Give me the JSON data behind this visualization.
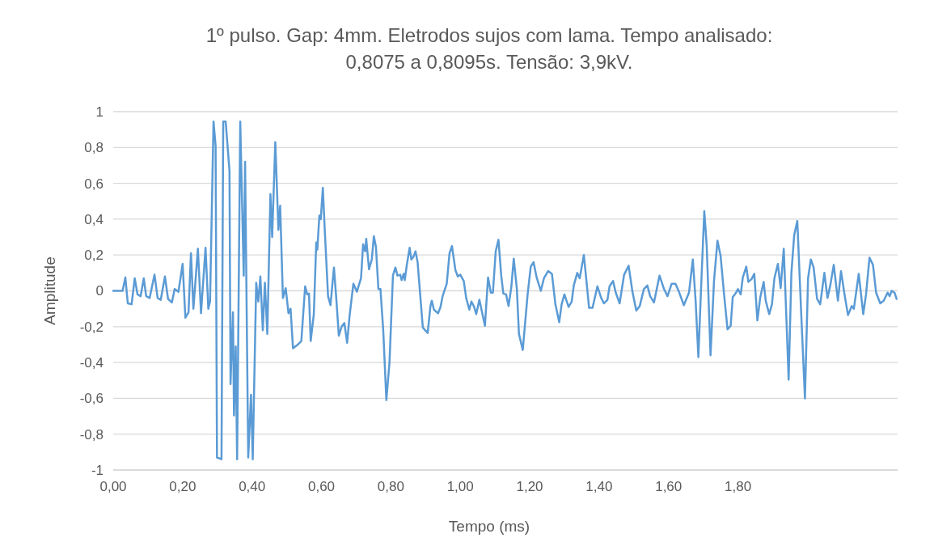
{
  "chart_data": {
    "type": "line",
    "title": "1º pulso. Gap: 4mm. Eletrodos sujos com lama. Tempo analisado: 0,8075 a 0,8095s. Tensão: 3,9kV.",
    "xlabel": "Tempo (ms)",
    "ylabel": "Amplitude",
    "xlim": [
      0,
      2.26
    ],
    "xticks": [
      {
        "value": 0,
        "label": "0,00"
      },
      {
        "value": 0.2,
        "label": "0,20"
      },
      {
        "value": 0.4,
        "label": "0,40"
      },
      {
        "value": 0.6,
        "label": "0,60"
      },
      {
        "value": 0.8,
        "label": "0,80"
      },
      {
        "value": 1.0,
        "label": "1,00"
      },
      {
        "value": 1.2,
        "label": "1,20"
      },
      {
        "value": 1.4,
        "label": "1,40"
      },
      {
        "value": 1.6,
        "label": "1,60"
      },
      {
        "value": 1.8,
        "label": "1,80"
      }
    ],
    "ylim": [
      -1,
      1
    ],
    "yticks": [
      -1,
      {
        "value": -0.8,
        "label": "-0,8"
      },
      {
        "value": -0.6,
        "label": "-0,6"
      },
      {
        "value": -0.4,
        "label": "-0,4"
      },
      {
        "value": -0.2,
        "label": "-0,2"
      },
      0,
      {
        "value": 0.2,
        "label": "0,2"
      },
      {
        "value": 0.4,
        "label": "0,4"
      },
      {
        "value": 0.6,
        "label": "0,6"
      },
      {
        "value": 0.8,
        "label": "0,8"
      },
      1
    ],
    "grid": "y",
    "marker": "none",
    "line_style": "solid",
    "series": [
      {
        "color": "#5b9bd5",
        "x": [
          0,
          0.004,
          0.027,
          0.035,
          0.042,
          0.053,
          0.062,
          0.07,
          0.079,
          0.088,
          0.095,
          0.105,
          0.119,
          0.128,
          0.137,
          0.149,
          0.158,
          0.169,
          0.177,
          0.188,
          0.2,
          0.208,
          0.217,
          0.224,
          0.231,
          0.244,
          0.253,
          0.266,
          0.274,
          0.279,
          0.289,
          0.295,
          0.299,
          0.312,
          0.317,
          0.324,
          0.335,
          0.338,
          0.345,
          0.348,
          0.353,
          0.357,
          0.366,
          0.376,
          0.38,
          0.389,
          0.397,
          0.402,
          0.412,
          0.418,
          0.424,
          0.431,
          0.437,
          0.444,
          0.453,
          0.458,
          0.467,
          0.476,
          0.481,
          0.489,
          0.497,
          0.505,
          0.511,
          0.518,
          0.532,
          0.542,
          0.553,
          0.559,
          0.564,
          0.569,
          0.578,
          0.585,
          0.588,
          0.594,
          0.598,
          0.604,
          0.609,
          0.619,
          0.626,
          0.636,
          0.643,
          0.65,
          0.658,
          0.666,
          0.674,
          0.681,
          0.692,
          0.702,
          0.714,
          0.72,
          0.726,
          0.729,
          0.737,
          0.745,
          0.751,
          0.757,
          0.764,
          0.77,
          0.778,
          0.787,
          0.796,
          0.806,
          0.813,
          0.819,
          0.827,
          0.831,
          0.837,
          0.84,
          0.846,
          0.854,
          0.859,
          0.865,
          0.871,
          0.877,
          0.892,
          0.906,
          0.914,
          0.918,
          0.924,
          0.936,
          0.943,
          0.949,
          0.961,
          0.969,
          0.976,
          0.986,
          0.993,
          1.0,
          1.01,
          1.017,
          1.026,
          1.032,
          1.04,
          1.046,
          1.055,
          1.071,
          1.08,
          1.088,
          1.094,
          1.102,
          1.11,
          1.118,
          1.124,
          1.132,
          1.139,
          1.147,
          1.154,
          1.163,
          1.169,
          1.18,
          1.194,
          1.203,
          1.211,
          1.22,
          1.232,
          1.241,
          1.253,
          1.264,
          1.274,
          1.285,
          1.292,
          1.3,
          1.312,
          1.321,
          1.327,
          1.337,
          1.344,
          1.356,
          1.362,
          1.371,
          1.381,
          1.395,
          1.406,
          1.414,
          1.424,
          1.43,
          1.44,
          1.448,
          1.459,
          1.472,
          1.485,
          1.496,
          1.507,
          1.517,
          1.529,
          1.539,
          1.547,
          1.558,
          1.574,
          1.587,
          1.597,
          1.609,
          1.62,
          1.63,
          1.644,
          1.659,
          1.67,
          1.678,
          1.686,
          1.693,
          1.703,
          1.71,
          1.721,
          1.731,
          1.741,
          1.75,
          1.76,
          1.77,
          1.779,
          1.785,
          1.793,
          1.8,
          1.808,
          1.814,
          1.824,
          1.83,
          1.839,
          1.847,
          1.856,
          1.864,
          1.874,
          1.88,
          1.89,
          1.898,
          1.905,
          1.915,
          1.923,
          1.932,
          1.94,
          1.946,
          1.954,
          1.962,
          1.971,
          1.983,
          1.993,
          2.002,
          2.01,
          2.018,
          2.028,
          2.037,
          2.049,
          2.058,
          2.066,
          2.076,
          2.088,
          2.097,
          2.107,
          2.117,
          2.128,
          2.134,
          2.148,
          2.161,
          2.169,
          2.179,
          2.189,
          2.198,
          2.21,
          2.22,
          2.231,
          2.237,
          2.243,
          2.251,
          2.257
        ],
        "values": [
          0,
          0,
          0,
          0.075,
          -0.07,
          -0.075,
          0.07,
          -0.02,
          -0.03,
          0.07,
          -0.03,
          -0.04,
          0.09,
          -0.04,
          -0.05,
          0.08,
          -0.045,
          -0.065,
          0.01,
          -0.005,
          0.15,
          -0.15,
          -0.12,
          0.21,
          -0.1,
          0.235,
          -0.125,
          0.24,
          -0.1,
          -0.06,
          0.945,
          0.81,
          -0.93,
          -0.94,
          0.945,
          0.945,
          0.67,
          -0.52,
          -0.12,
          -0.695,
          -0.31,
          -0.94,
          0.945,
          0.085,
          0.72,
          -0.93,
          -0.58,
          -0.94,
          0.045,
          -0.06,
          0.08,
          -0.22,
          0.045,
          -0.24,
          0.54,
          0.3,
          0.83,
          0.34,
          0.475,
          -0.04,
          0.015,
          -0.125,
          -0.1,
          -0.32,
          -0.3,
          -0.28,
          0.025,
          -0.02,
          -0.015,
          -0.28,
          -0.13,
          0.27,
          0.23,
          0.42,
          0.4,
          0.575,
          0.36,
          -0.03,
          -0.08,
          0.13,
          -0.05,
          -0.25,
          -0.2,
          -0.18,
          -0.29,
          -0.14,
          0.04,
          -0.005,
          0.07,
          0.26,
          0.22,
          0.29,
          0.12,
          0.175,
          0.305,
          0.245,
          0.01,
          0.01,
          -0.22,
          -0.61,
          -0.4,
          0.085,
          0.13,
          0.085,
          0.09,
          0.06,
          0.095,
          0.06,
          0.145,
          0.24,
          0.175,
          0.19,
          0.22,
          0.16,
          -0.205,
          -0.235,
          -0.085,
          -0.055,
          -0.105,
          -0.125,
          -0.09,
          -0.03,
          0.04,
          0.21,
          0.25,
          0.115,
          0.08,
          0.09,
          0.055,
          -0.04,
          -0.105,
          -0.06,
          -0.09,
          -0.13,
          -0.05,
          -0.195,
          0.075,
          -0.01,
          -0.01,
          0.22,
          0.285,
          0.085,
          -0.015,
          -0.02,
          -0.085,
          0.02,
          0.18,
          0.01,
          -0.24,
          -0.33,
          -0.02,
          0.135,
          0.16,
          0.075,
          0,
          0.07,
          0.11,
          0.095,
          -0.075,
          -0.175,
          -0.075,
          -0.02,
          -0.09,
          -0.06,
          0.03,
          0.1,
          0.07,
          0.2,
          0.085,
          -0.095,
          -0.095,
          0.025,
          -0.04,
          -0.07,
          -0.05,
          0.025,
          0.055,
          -0.01,
          -0.07,
          0.09,
          0.14,
          -0.005,
          -0.11,
          -0.085,
          0.01,
          0.03,
          -0.03,
          -0.065,
          0.085,
          0.01,
          -0.03,
          0.04,
          0.04,
          -0.005,
          -0.08,
          -0.01,
          0.175,
          -0.055,
          -0.37,
          -0.02,
          0.445,
          0.25,
          -0.36,
          0.055,
          0.28,
          0.195,
          -0.02,
          -0.215,
          -0.195,
          -0.035,
          -0.015,
          0.01,
          -0.02,
          0.075,
          0.135,
          0.05,
          0.065,
          0.095,
          -0.165,
          -0.04,
          0.05,
          -0.055,
          -0.13,
          -0.075,
          0.07,
          0.15,
          0.015,
          0.235,
          -0.175,
          -0.495,
          0.1,
          0.31,
          0.39,
          -0.16,
          -0.6,
          0.07,
          0.175,
          0.13,
          -0.045,
          -0.075,
          0.1,
          -0.04,
          0.03,
          0.145,
          -0.055,
          0.11,
          -0.02,
          -0.135,
          -0.085,
          -0.1,
          0.095,
          -0.13,
          -0.02,
          0.185,
          0.145,
          -0.01,
          -0.07,
          -0.055,
          -0.01,
          -0.03,
          0,
          -0.01,
          -0.045
        ]
      }
    ]
  }
}
